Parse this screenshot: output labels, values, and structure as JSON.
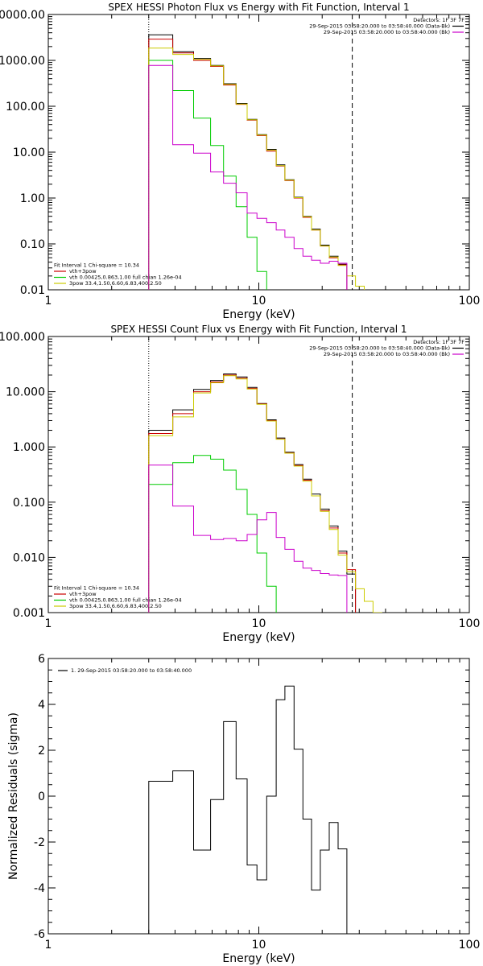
{
  "chart_data": [
    {
      "type": "line",
      "title": "SPEX HESSI Photon Flux vs Energy with Fit Function, Interval 1",
      "xlabel": "Energy (keV)",
      "ylabel": "",
      "xscale": "log",
      "yscale": "log",
      "xlim": [
        1,
        100
      ],
      "ylim": [
        0.01,
        10000
      ],
      "xticks": [
        {
          "value": 1,
          "label": "1"
        },
        {
          "value": 10,
          "label": "10"
        },
        {
          "value": 100,
          "label": "100"
        }
      ],
      "yticks": [
        {
          "value": 10000,
          "label": "10000.00"
        },
        {
          "value": 1000,
          "label": "1000.00"
        },
        {
          "value": 100,
          "label": "100.00"
        },
        {
          "value": 10,
          "label": "10.00"
        },
        {
          "value": 1,
          "label": "1.00"
        },
        {
          "value": 0.1,
          "label": "0.10"
        },
        {
          "value": 0.01,
          "label": "0.01"
        }
      ],
      "vlines": [
        {
          "x": 3.0,
          "style": "dotted"
        },
        {
          "x": 27.8,
          "style": "dashed"
        }
      ],
      "legend_topright": [
        {
          "text": "Detectors: 1F 3F 7F",
          "color": "",
          "line": false
        },
        {
          "text": "29-Sep-2015 03:58:20.000 to 03:58:40.000 (Data-Bk)",
          "color": "#000000",
          "line": true
        },
        {
          "text": "29-Sep-2015 03:58:20.000 to 03:58:40.000 (Bk)",
          "color": "#cc00cc",
          "line": true
        }
      ],
      "legend_bottomleft": [
        {
          "text": "Fit Interval 1   Chi-square = 10.34",
          "color": "",
          "line": false
        },
        {
          "text": "vth+3pow",
          "color": "#cc0000",
          "line": true
        },
        {
          "text": "vth 0.00425,0.863,1.00  full chian 1.26e-04",
          "color": "#00cc00",
          "line": true
        },
        {
          "text": "3pow 33.4,1.50,6.60,6.83,400,2.50",
          "color": "#cccc00",
          "line": true
        }
      ],
      "edges": [
        3.0,
        3.9,
        4.9,
        5.9,
        6.8,
        7.8,
        8.8,
        9.8,
        10.9,
        12.1,
        13.3,
        14.7,
        16.2,
        17.8,
        19.6,
        21.6,
        23.8,
        26.2,
        28.8,
        31.7,
        34.9
      ],
      "series": [
        {
          "name": "29-Sep-2015 03:58:20.000 to 03:58:40.000 (Data-Bk)",
          "color": "#000000",
          "values": [
            3600,
            1550,
            1100,
            780,
            310,
            115,
            52,
            24,
            11.5,
            5.3,
            2.5,
            1.04,
            0.4,
            0.21,
            0.094,
            0.054,
            0.036
          ]
        },
        {
          "name": "vth+3pow",
          "color": "#cc0000",
          "values": [
            2900,
            1450,
            1000,
            740,
            290,
            110,
            50,
            23,
            10.5,
            5.0,
            2.4,
            1.0,
            0.38,
            0.2,
            0.09,
            0.05,
            0.035
          ]
        },
        {
          "name": "vth 0.00425,0.863,1.00  full chian 1.26e-04",
          "color": "#00cc00",
          "values": [
            1000,
            220,
            55,
            14,
            3.0,
            0.65,
            0.14,
            0.025,
            0.0035
          ]
        },
        {
          "name": "3pow 33.4,1.50,6.60,6.83,400,2.50",
          "color": "#cccc00",
          "values": [
            1850,
            1350,
            1050,
            760,
            300,
            112,
            51,
            23.5,
            11,
            5.1,
            2.45,
            1.02,
            0.39,
            0.2,
            0.09,
            0.052,
            0.034,
            0.02,
            0.012,
            0.008
          ]
        },
        {
          "name": "29-Sep-2015 03:58:20.000 to 03:58:40.000 (Bk)",
          "color": "#cc00cc",
          "values": [
            780,
            14.5,
            9.5,
            3.7,
            2.1,
            1.3,
            0.47,
            0.36,
            0.29,
            0.2,
            0.14,
            0.079,
            0.054,
            0.044,
            0.038,
            0.042,
            0.038
          ]
        }
      ]
    },
    {
      "type": "line",
      "title": "SPEX HESSI Count Flux vs Energy with Fit Function, Interval 1",
      "xlabel": "Energy (keV)",
      "ylabel": "",
      "xscale": "log",
      "yscale": "log",
      "xlim": [
        1,
        100
      ],
      "ylim": [
        0.001,
        100
      ],
      "xticks": [
        {
          "value": 1,
          "label": "1"
        },
        {
          "value": 10,
          "label": "10"
        },
        {
          "value": 100,
          "label": "100"
        }
      ],
      "yticks": [
        {
          "value": 100,
          "label": "100.000"
        },
        {
          "value": 10,
          "label": "10.000"
        },
        {
          "value": 1,
          "label": "1.000"
        },
        {
          "value": 0.1,
          "label": "0.100"
        },
        {
          "value": 0.01,
          "label": "0.010"
        },
        {
          "value": 0.001,
          "label": "0.001"
        }
      ],
      "vlines": [
        {
          "x": 3.0,
          "style": "dotted"
        },
        {
          "x": 27.8,
          "style": "dashed"
        }
      ],
      "legend_topright": [
        {
          "text": "Detectors: 1F 3F 7F",
          "color": "",
          "line": false
        },
        {
          "text": "29-Sep-2015 03:58:20.000 to 03:58:40.000 (Data-Bk)",
          "color": "#000000",
          "line": true
        },
        {
          "text": "29-Sep-2015 03:58:20.000 to 03:58:40.000 (Bk)",
          "color": "#cc00cc",
          "line": true
        }
      ],
      "legend_bottomleft": [
        {
          "text": "Fit Interval 1   Chi-square = 10.34",
          "color": "",
          "line": false
        },
        {
          "text": "vth+3pow",
          "color": "#cc0000",
          "line": true
        },
        {
          "text": "vth 0.00425,0.863,1.00  full chian 1.26e-04",
          "color": "#00cc00",
          "line": true
        },
        {
          "text": "3pow 33.4,1.50,6.60,6.83,400,2.50",
          "color": "#cccc00",
          "line": true
        }
      ],
      "edges": [
        3.0,
        3.9,
        4.9,
        5.9,
        6.8,
        7.8,
        8.8,
        9.8,
        10.9,
        12.1,
        13.3,
        14.7,
        16.2,
        17.8,
        19.6,
        21.6,
        23.8,
        26.2,
        28.8,
        31.7,
        34.9,
        38.4
      ],
      "series": [
        {
          "name": "29-Sep-2015 03:58:20.000 to 03:58:40.000 (Data-Bk)",
          "color": "#000000",
          "values": [
            2.0,
            4.7,
            11,
            16,
            21,
            18.5,
            12,
            6.1,
            3.1,
            1.45,
            0.8,
            0.48,
            0.26,
            0.14,
            0.075,
            0.037,
            0.013,
            0.005
          ]
        },
        {
          "name": "vth+3pow",
          "color": "#cc0000",
          "values": [
            1.75,
            4.0,
            10,
            15,
            20,
            17.5,
            11.5,
            6.0,
            3.0,
            1.4,
            0.78,
            0.46,
            0.25,
            0.13,
            0.07,
            0.034,
            0.012,
            0.006
          ]
        },
        {
          "name": "vth 0.00425,0.863,1.00  full chian 1.26e-04",
          "color": "#00cc00",
          "values": [
            0.21,
            0.52,
            0.7,
            0.6,
            0.38,
            0.17,
            0.06,
            0.012,
            0.003
          ]
        },
        {
          "name": "3pow 33.4,1.50,6.60,6.83,400,2.50",
          "color": "#cccc00",
          "values": [
            1.6,
            3.5,
            9.5,
            14.5,
            19.5,
            17,
            11.2,
            5.9,
            2.95,
            1.38,
            0.77,
            0.45,
            0.24,
            0.13,
            0.068,
            0.032,
            0.011,
            0.0055,
            0.0027,
            0.0016,
            0.001
          ]
        },
        {
          "name": "29-Sep-2015 03:58:20.000 to 03:58:40.000 (Bk)",
          "color": "#cc00cc",
          "values": [
            0.47,
            0.085,
            0.025,
            0.021,
            0.022,
            0.02,
            0.026,
            0.048,
            0.065,
            0.023,
            0.014,
            0.0085,
            0.0064,
            0.0058,
            0.0051,
            0.0048,
            0.0047
          ]
        }
      ]
    },
    {
      "type": "line",
      "title": "",
      "xlabel": "Energy (keV)",
      "ylabel": "Normalized Residuals (sigma)",
      "xscale": "log",
      "yscale": "linear",
      "xlim": [
        1,
        100
      ],
      "ylim": [
        -6,
        6
      ],
      "xticks": [
        {
          "value": 1,
          "label": "1"
        },
        {
          "value": 10,
          "label": "10"
        },
        {
          "value": 100,
          "label": "100"
        }
      ],
      "yticks": [
        {
          "value": 6,
          "label": "6"
        },
        {
          "value": 4,
          "label": "4"
        },
        {
          "value": 2,
          "label": "2"
        },
        {
          "value": 0,
          "label": "0"
        },
        {
          "value": -2,
          "label": "-2"
        },
        {
          "value": -4,
          "label": "-4"
        },
        {
          "value": -6,
          "label": "-6"
        }
      ],
      "legend_topleft": [
        {
          "text": "1. 29-Sep-2015 03:58:20.000 to 03:58:40.000",
          "color": "#000000",
          "line": true
        }
      ],
      "edges": [
        3.0,
        3.9,
        4.9,
        5.9,
        6.8,
        7.8,
        8.8,
        9.8,
        10.9,
        12.1,
        13.3,
        14.7,
        16.2,
        17.8,
        19.6,
        21.6,
        23.8,
        26.2,
        28.8
      ],
      "series": [
        {
          "name": "1. 29-Sep-2015 03:58:20.000 to 03:58:40.000",
          "color": "#000000",
          "values": [
            0.65,
            1.1,
            -2.35,
            -0.15,
            3.25,
            0.75,
            -3.0,
            -3.65,
            0.0,
            4.2,
            4.8,
            2.05,
            -1.0,
            -4.1,
            -2.35,
            -1.15,
            -2.3
          ]
        }
      ]
    }
  ]
}
